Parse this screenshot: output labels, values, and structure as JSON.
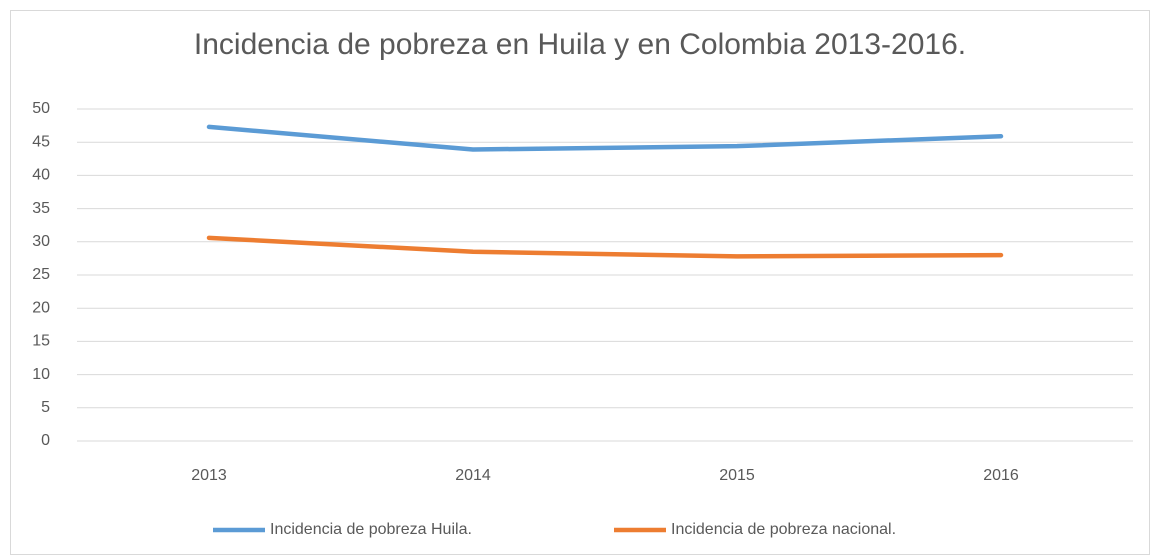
{
  "chart_data": {
    "type": "line",
    "title": "Incidencia de pobreza en Huila y en Colombia 2013-2016.",
    "categories": [
      "2013",
      "2014",
      "2015",
      "2016"
    ],
    "series": [
      {
        "name": "Incidencia de pobreza Huila.",
        "color": "#5b9bd5",
        "values": [
          47.3,
          43.9,
          44.4,
          45.9
        ]
      },
      {
        "name": "Incidencia de pobreza nacional.",
        "color": "#ed7d31",
        "values": [
          30.6,
          28.5,
          27.8,
          28.0
        ]
      }
    ],
    "ylim": [
      0,
      50
    ],
    "yticks": [
      0,
      5,
      10,
      15,
      20,
      25,
      30,
      35,
      40,
      45,
      50
    ],
    "grid": true,
    "legend": "bottom"
  }
}
